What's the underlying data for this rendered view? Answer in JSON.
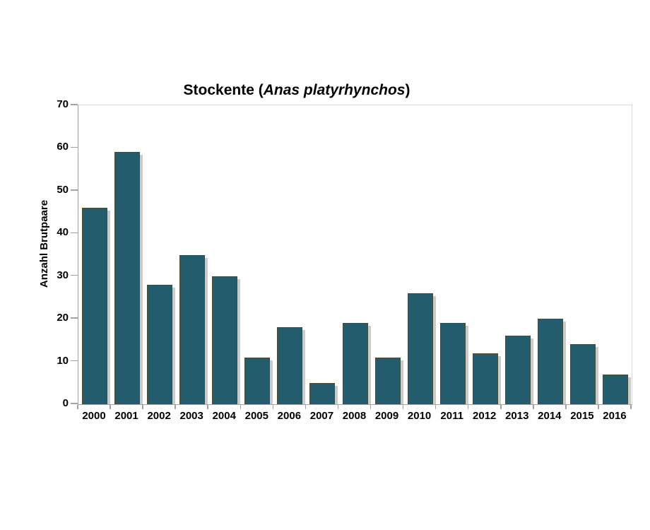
{
  "figure": {
    "background": "#ffffff"
  },
  "chart_data": {
    "type": "bar",
    "title": {
      "prefix": "Stockente (",
      "species": "Anas platyrhynchos",
      "suffix": ")",
      "full": "Stockente (Anas platyrhynchos)"
    },
    "xlabel": "",
    "ylabel": "Anzahl Brutpaare",
    "categories": [
      "2000",
      "2001",
      "2002",
      "2003",
      "2004",
      "2005",
      "2006",
      "2007",
      "2008",
      "2009",
      "2010",
      "2011",
      "2012",
      "2013",
      "2014",
      "2015",
      "2016"
    ],
    "values": [
      46,
      59,
      28,
      35,
      30,
      11,
      18,
      5,
      19,
      11,
      26,
      19,
      12,
      16,
      20,
      14,
      7
    ],
    "ylim": [
      0,
      70
    ],
    "yticks": [
      0,
      10,
      20,
      30,
      40,
      50,
      60,
      70
    ],
    "grid": false,
    "legend": null,
    "colors": {
      "bar_fill": "#235c6c",
      "bar_border": "#4a4a33",
      "bar_shadow": "#c4c4c4",
      "axis_line": "#a3a3a3",
      "plot_border_top_right": "#d9d9d9",
      "text": "#000000",
      "background": "#ffffff"
    }
  }
}
